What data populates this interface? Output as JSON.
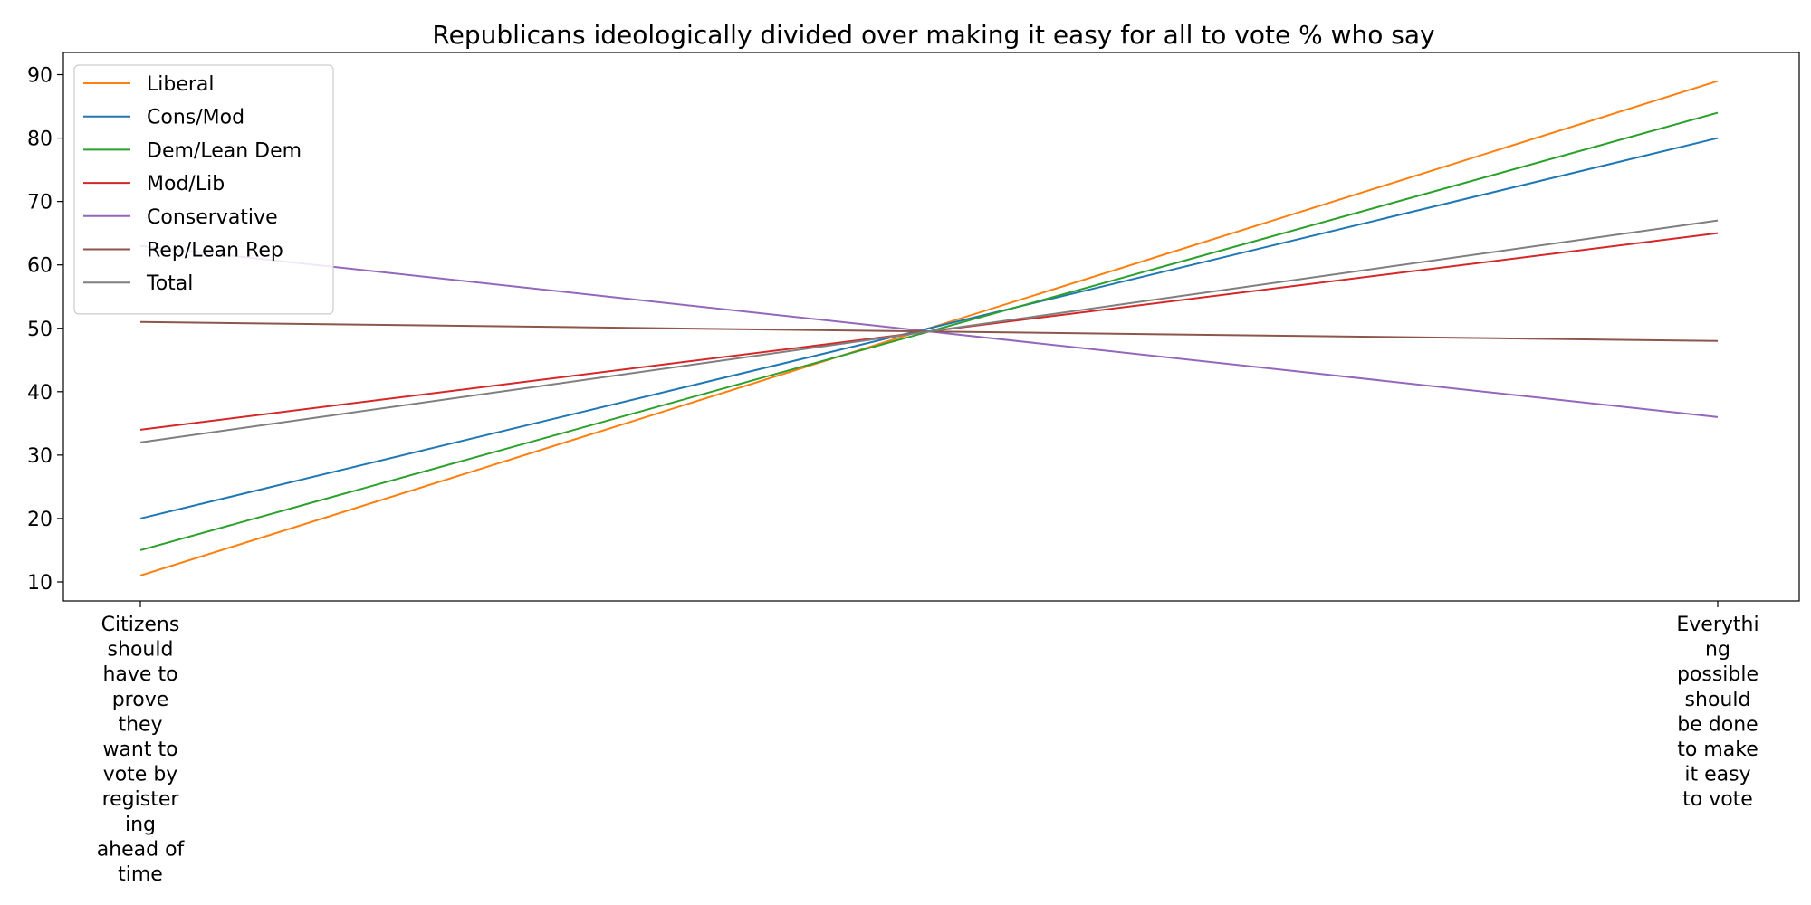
{
  "chart_data": {
    "type": "line",
    "title": "Republicans ideologically divided over making it easy for all to vote % who say",
    "xlabel": "",
    "ylabel": "",
    "categories": [
      "Citizens should have to prove they want to vote by registering ahead of time",
      "Everything possible should be done to make it easy to vote"
    ],
    "category_tick_lines": [
      [
        "Citizens",
        "should",
        "have to",
        "prove",
        "they",
        "want to",
        "vote by",
        "register",
        "ing",
        "ahead of",
        "time"
      ],
      [
        "Everythi",
        "ng",
        "possible",
        "should",
        "be done",
        "to make",
        "it easy",
        "to vote"
      ]
    ],
    "ylim": [
      7,
      93.5
    ],
    "yticks": [
      10,
      20,
      30,
      40,
      50,
      60,
      70,
      80,
      90
    ],
    "grid": false,
    "legend_position": "top-left",
    "series": [
      {
        "name": "Liberal",
        "values": [
          11,
          89
        ],
        "color": "#ff7f0e"
      },
      {
        "name": "Cons/Mod",
        "values": [
          20,
          80
        ],
        "color": "#1f77b4"
      },
      {
        "name": "Dem/Lean Dem",
        "values": [
          15,
          84
        ],
        "color": "#2ca02c"
      },
      {
        "name": "Mod/Lib",
        "values": [
          34,
          65
        ],
        "color": "#d62728"
      },
      {
        "name": "Conservative",
        "values": [
          63,
          36
        ],
        "color": "#9467bd"
      },
      {
        "name": "Rep/Lean Rep",
        "values": [
          51,
          48
        ],
        "color": "#8c564b"
      },
      {
        "name": "Total",
        "values": [
          32,
          67
        ],
        "color": "#7f7f7f"
      }
    ]
  }
}
